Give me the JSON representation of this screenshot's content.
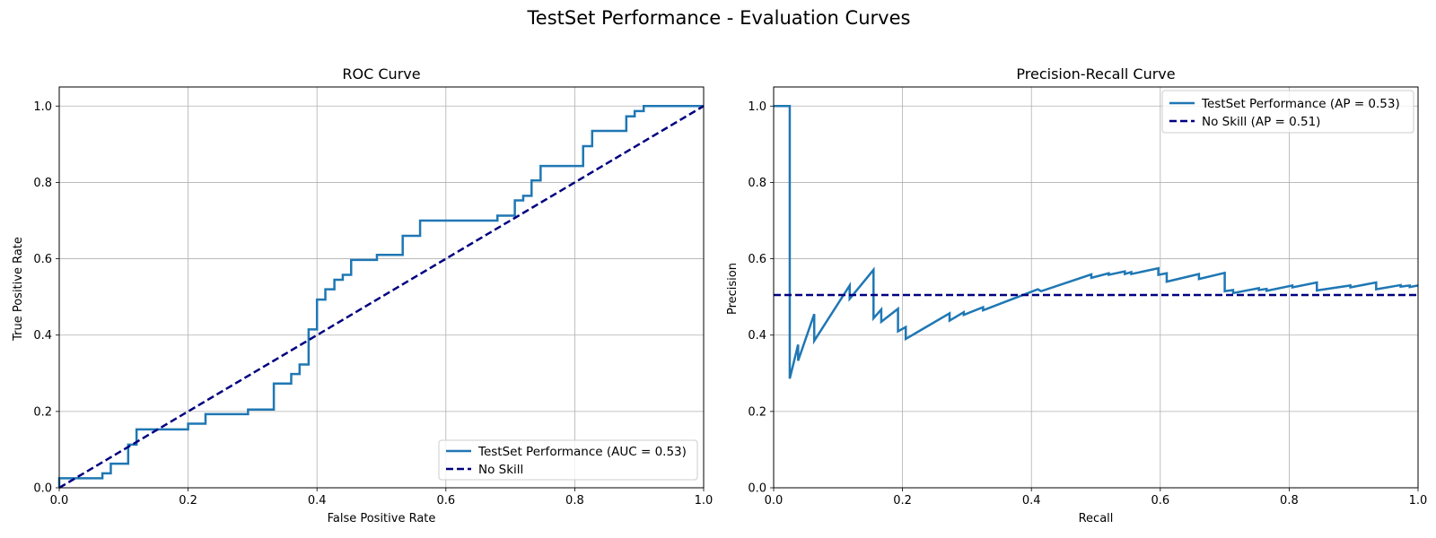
{
  "suptitle": "TestSet Performance - Evaluation Curves",
  "colors": {
    "model": "#1f77b4",
    "baseline": "#000080",
    "grid": "#b0b0b0"
  },
  "chart_data": [
    {
      "type": "line",
      "title": "ROC Curve",
      "xlabel": "False Positive Rate",
      "ylabel": "True Positive Rate",
      "xlim": [
        0,
        1
      ],
      "ylim": [
        0,
        1.05
      ],
      "xticks": [
        0,
        0.2,
        0.4,
        0.6,
        0.8,
        1.0
      ],
      "yticks": [
        0,
        0.2,
        0.4,
        0.6,
        0.8,
        1.0
      ],
      "xtick_labels": [
        "0.0",
        "0.2",
        "0.4",
        "0.6",
        "0.8",
        "1.0"
      ],
      "ytick_labels": [
        "0.0",
        "0.2",
        "0.4",
        "0.6",
        "0.8",
        "1.0"
      ],
      "grid": true,
      "legend_position": "lower-right",
      "series": [
        {
          "name": "TestSet Performance (AUC = 0.53)",
          "style": "solid",
          "x": [
            0,
            0,
            0.067,
            0.067,
            0.08,
            0.08,
            0.107,
            0.107,
            0.12,
            0.12,
            0.2,
            0.2,
            0.227,
            0.227,
            0.293,
            0.293,
            0.333,
            0.333,
            0.36,
            0.36,
            0.373,
            0.373,
            0.387,
            0.387,
            0.4,
            0.4,
            0.413,
            0.413,
            0.427,
            0.427,
            0.44,
            0.44,
            0.453,
            0.453,
            0.493,
            0.493,
            0.533,
            0.533,
            0.56,
            0.56,
            0.68,
            0.68,
            0.707,
            0.707,
            0.72,
            0.72,
            0.733,
            0.733,
            0.747,
            0.747,
            0.813,
            0.813,
            0.827,
            0.827,
            0.88,
            0.88,
            0.893,
            0.893,
            0.907,
            0.907,
            1.0
          ],
          "y": [
            0,
            0.025,
            0.025,
            0.038,
            0.038,
            0.063,
            0.063,
            0.113,
            0.113,
            0.153,
            0.153,
            0.168,
            0.168,
            0.193,
            0.193,
            0.205,
            0.205,
            0.273,
            0.273,
            0.298,
            0.298,
            0.323,
            0.323,
            0.415,
            0.415,
            0.493,
            0.493,
            0.52,
            0.52,
            0.545,
            0.545,
            0.558,
            0.558,
            0.597,
            0.597,
            0.61,
            0.61,
            0.66,
            0.66,
            0.7,
            0.7,
            0.713,
            0.713,
            0.753,
            0.753,
            0.765,
            0.765,
            0.805,
            0.805,
            0.843,
            0.843,
            0.895,
            0.895,
            0.935,
            0.935,
            0.973,
            0.973,
            0.987,
            0.987,
            1.0,
            1.0
          ]
        },
        {
          "name": "No Skill",
          "style": "dashed",
          "x": [
            0,
            1
          ],
          "y": [
            0,
            1
          ]
        }
      ]
    },
    {
      "type": "line",
      "title": "Precision-Recall Curve",
      "xlabel": "Recall",
      "ylabel": "Precision",
      "xlim": [
        0,
        1
      ],
      "ylim": [
        0,
        1.05
      ],
      "xticks": [
        0,
        0.2,
        0.4,
        0.6,
        0.8,
        1.0
      ],
      "yticks": [
        0,
        0.2,
        0.4,
        0.6,
        0.8,
        1.0
      ],
      "xtick_labels": [
        "0.0",
        "0.2",
        "0.4",
        "0.6",
        "0.8",
        "1.0"
      ],
      "ytick_labels": [
        "0.0",
        "0.2",
        "0.4",
        "0.6",
        "0.8",
        "1.0"
      ],
      "grid": true,
      "legend_position": "top-right",
      "series": [
        {
          "name": "TestSet Performance (AP = 0.53)",
          "style": "solid",
          "x": [
            0,
            0.025,
            0.025,
            0.038,
            0.038,
            0.063,
            0.063,
            0.118,
            0.118,
            0.155,
            0.155,
            0.167,
            0.167,
            0.193,
            0.193,
            0.205,
            0.205,
            0.273,
            0.273,
            0.295,
            0.295,
            0.325,
            0.325,
            0.41,
            0.415,
            0.493,
            0.493,
            0.52,
            0.52,
            0.545,
            0.545,
            0.555,
            0.555,
            0.597,
            0.597,
            0.61,
            0.61,
            0.66,
            0.66,
            0.7,
            0.7,
            0.713,
            0.713,
            0.753,
            0.753,
            0.765,
            0.765,
            0.805,
            0.805,
            0.843,
            0.843,
            0.895,
            0.895,
            0.935,
            0.935,
            0.973,
            0.973,
            0.987,
            0.987,
            1.0
          ],
          "y": [
            1.0,
            1.0,
            0.286,
            0.375,
            0.333,
            0.455,
            0.385,
            0.53,
            0.495,
            0.571,
            0.444,
            0.467,
            0.435,
            0.469,
            0.41,
            0.421,
            0.39,
            0.457,
            0.438,
            0.46,
            0.453,
            0.473,
            0.465,
            0.52,
            0.515,
            0.559,
            0.55,
            0.562,
            0.558,
            0.567,
            0.56,
            0.565,
            0.56,
            0.575,
            0.558,
            0.562,
            0.54,
            0.56,
            0.547,
            0.563,
            0.515,
            0.518,
            0.51,
            0.523,
            0.518,
            0.521,
            0.516,
            0.53,
            0.525,
            0.538,
            0.517,
            0.53,
            0.525,
            0.538,
            0.52,
            0.531,
            0.527,
            0.53,
            0.526,
            0.53
          ]
        },
        {
          "name": "No Skill (AP = 0.51)",
          "style": "dashed",
          "x": [
            0,
            1
          ],
          "y": [
            0.505,
            0.505
          ]
        }
      ]
    }
  ]
}
